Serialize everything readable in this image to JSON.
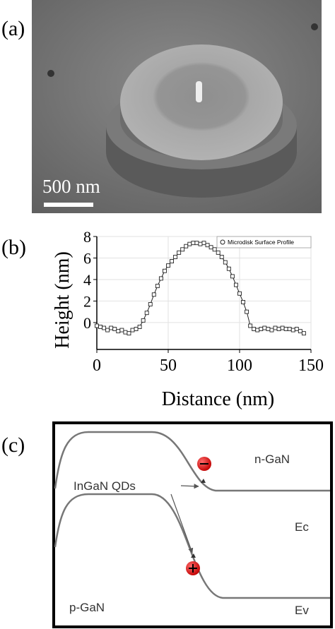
{
  "panels": {
    "a": "(a)",
    "b": "(b)",
    "c": "(c)"
  },
  "sem": {
    "scale_bar": "500 nm"
  },
  "chart_data": {
    "type": "line",
    "x_label": "Distance (nm)",
    "y_label": "Height (nm)",
    "x": [
      0,
      2.5,
      5,
      7.5,
      10,
      12.5,
      15,
      17.5,
      20,
      22.5,
      25,
      27.5,
      30,
      32.5,
      35,
      37.5,
      40,
      42.5,
      45,
      47.5,
      50,
      52.5,
      55,
      57.5,
      60,
      62.5,
      65,
      67.5,
      70,
      72.5,
      75,
      77.5,
      80,
      82.5,
      85,
      87.5,
      90,
      92.5,
      95,
      97.5,
      100,
      102.5,
      105,
      107.5,
      110,
      112.5,
      115,
      117.5,
      120,
      122.5,
      125,
      127.5,
      130,
      132.5,
      135,
      137.5,
      140,
      142.5,
      145
    ],
    "series": [
      {
        "name": "Microdisk Surface Profile",
        "color": "#222222",
        "values": [
          -0.3,
          -0.4,
          -0.5,
          -0.7,
          -0.5,
          -0.6,
          -0.8,
          -0.7,
          -0.9,
          -1.0,
          -0.7,
          -0.6,
          -0.4,
          0.2,
          0.9,
          1.7,
          2.6,
          3.4,
          4.1,
          4.8,
          5.3,
          5.7,
          6.1,
          6.5,
          6.8,
          7.1,
          7.3,
          7.4,
          7.4,
          7.3,
          7.4,
          7.2,
          7.0,
          6.8,
          6.5,
          6.1,
          5.6,
          5.0,
          4.3,
          3.5,
          2.7,
          1.9,
          1.0,
          -0.3,
          -0.6,
          -0.7,
          -0.6,
          -0.5,
          -0.6,
          -0.7,
          -0.5,
          -0.6,
          -0.5,
          -0.6,
          -0.6,
          -0.7,
          -0.6,
          -0.8,
          -1.0
        ]
      }
    ],
    "xlim": [
      0,
      150
    ],
    "xticks": [
      0,
      50,
      100,
      150
    ],
    "ylim": [
      -2.5,
      8
    ],
    "yticks": [
      0,
      2,
      4,
      6,
      8
    ],
    "grid": true,
    "legend": "upper right"
  },
  "band_diagram": {
    "n_region": "n-GaN",
    "quantum_dots": "InGaN QDs",
    "conduction_band": "Ec",
    "p_region": "p-GaN",
    "valence_band": "Ev"
  }
}
